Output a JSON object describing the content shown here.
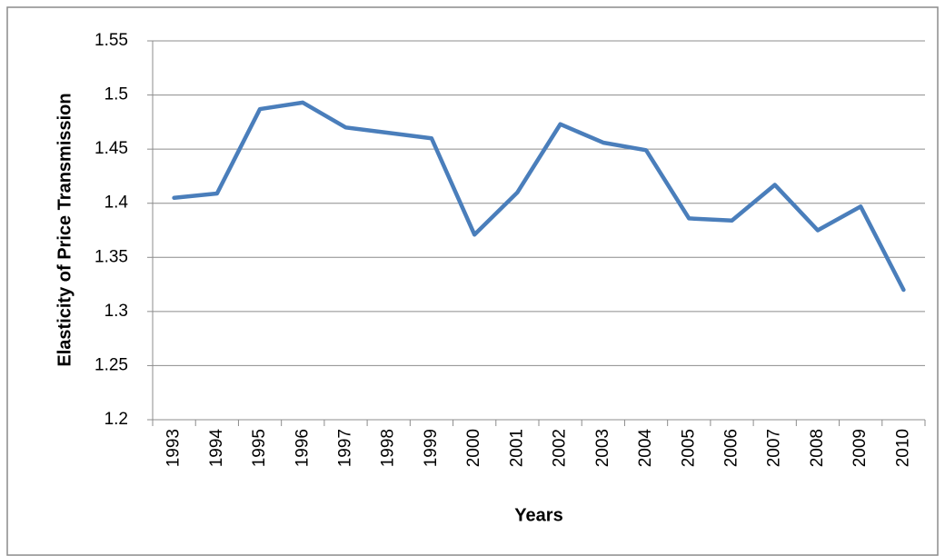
{
  "chart_data": {
    "type": "line",
    "x_label": "Years",
    "y_label": "Elasticity of Price Transmission",
    "categories": [
      "1993",
      "1994",
      "1995",
      "1996",
      "1997",
      "1998",
      "1999",
      "2000",
      "2001",
      "2002",
      "2003",
      "2004",
      "2005",
      "2006",
      "2007",
      "2008",
      "2009",
      "2010"
    ],
    "series": [
      {
        "color": "#4a7ebb",
        "values": [
          1.405,
          1.409,
          1.487,
          1.493,
          1.47,
          1.465,
          1.46,
          1.371,
          1.41,
          1.473,
          1.456,
          1.449,
          1.386,
          1.384,
          1.417,
          1.375,
          1.397,
          1.32
        ]
      }
    ],
    "ylim": [
      1.2,
      1.55
    ],
    "yticks": [
      1.2,
      1.25,
      1.3,
      1.35,
      1.4,
      1.45,
      1.5,
      1.55
    ],
    "grid": true
  }
}
